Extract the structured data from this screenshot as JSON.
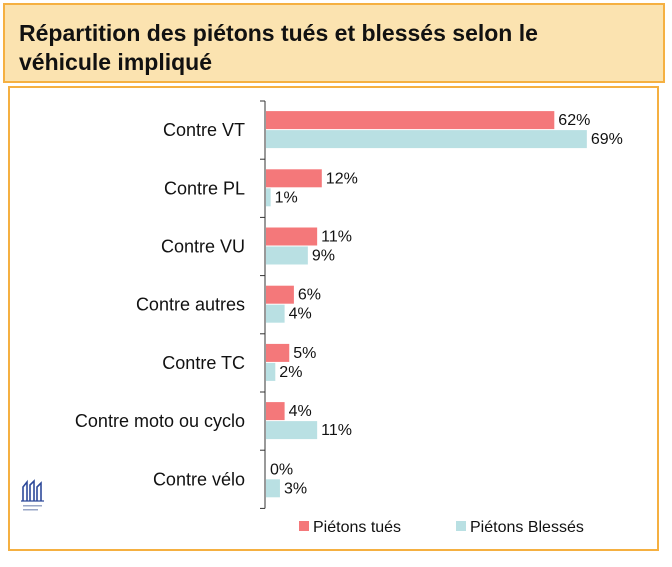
{
  "title": "Répartition des piétons tués et blessés selon le véhicule impliqué",
  "chart_data": {
    "type": "bar",
    "orientation": "horizontal",
    "categories": [
      "Contre VT",
      "Contre PL",
      "Contre VU",
      "Contre autres",
      "Contre TC",
      "Contre moto ou cyclo",
      "Contre vélo"
    ],
    "series": [
      {
        "name": "Piétons tués",
        "values": [
          62,
          12,
          11,
          6,
          5,
          4,
          0
        ],
        "labels": [
          "62%",
          "12%",
          "11%",
          "6%",
          "5%",
          "4%",
          "0%"
        ],
        "color": "#f4787a"
      },
      {
        "name": "Piétons Blessés",
        "values": [
          69,
          1,
          9,
          4,
          2,
          11,
          3
        ],
        "labels": [
          "69%",
          "1%",
          "9%",
          "4%",
          "2%",
          "11%",
          "3%"
        ],
        "color": "#b9e0e3"
      }
    ],
    "unit": "%",
    "xlim": [
      0,
      70
    ],
    "legend_position": "bottom",
    "grid": false
  }
}
